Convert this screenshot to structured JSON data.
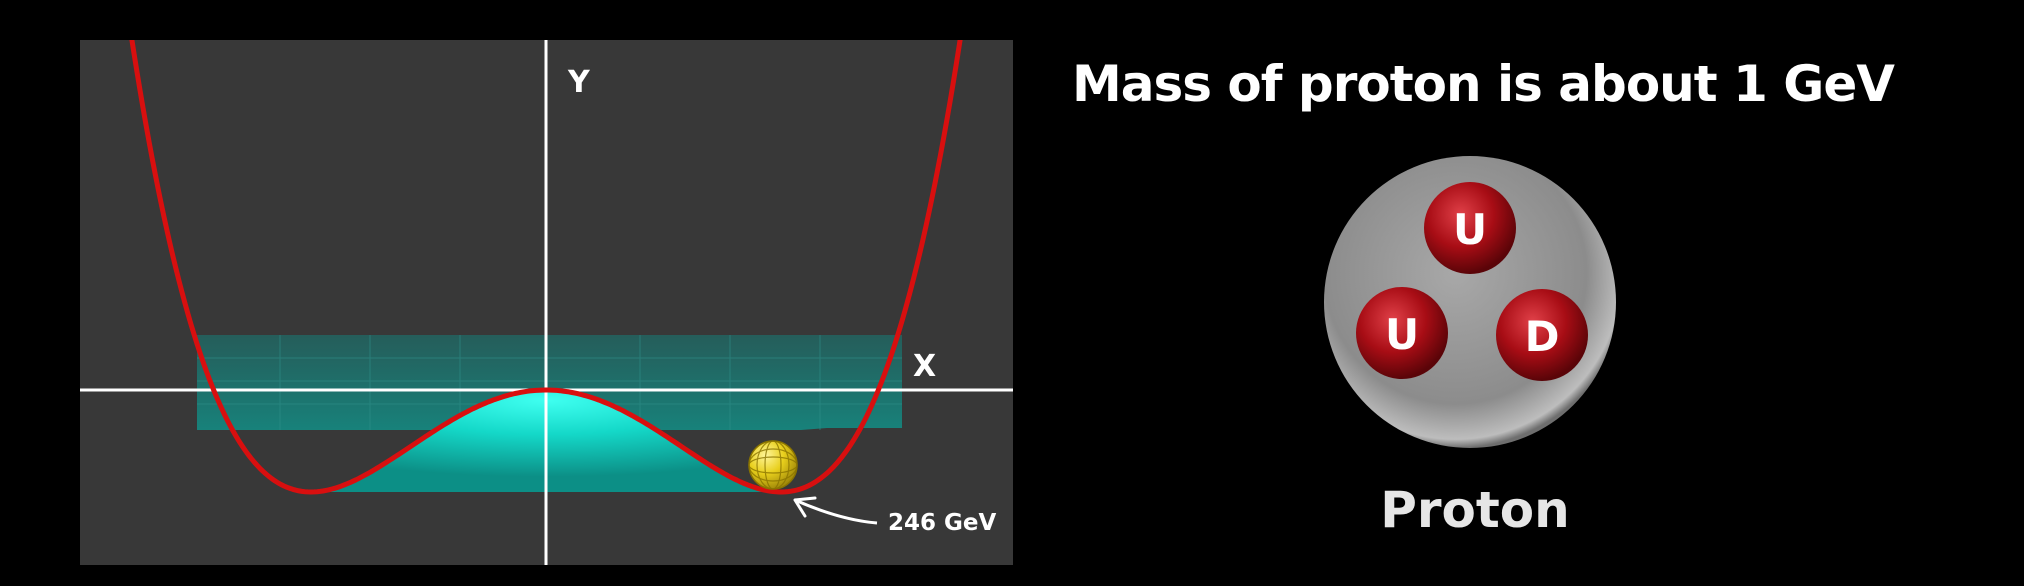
{
  "potential": {
    "y_axis_label": "Y",
    "x_axis_label": "X",
    "vev_label": "246 GeV",
    "colors": {
      "curve": "#d80f0f",
      "cap": "#17e8d6",
      "ball": "#e9d11f",
      "axes": "#ffffff"
    }
  },
  "headline": "Mass of proton is about 1 GeV",
  "proton": {
    "quarks": [
      "U",
      "U",
      "D"
    ],
    "caption": "Proton",
    "colors": {
      "sphere": "#9a9a9a",
      "quark": "#b3121a"
    }
  }
}
